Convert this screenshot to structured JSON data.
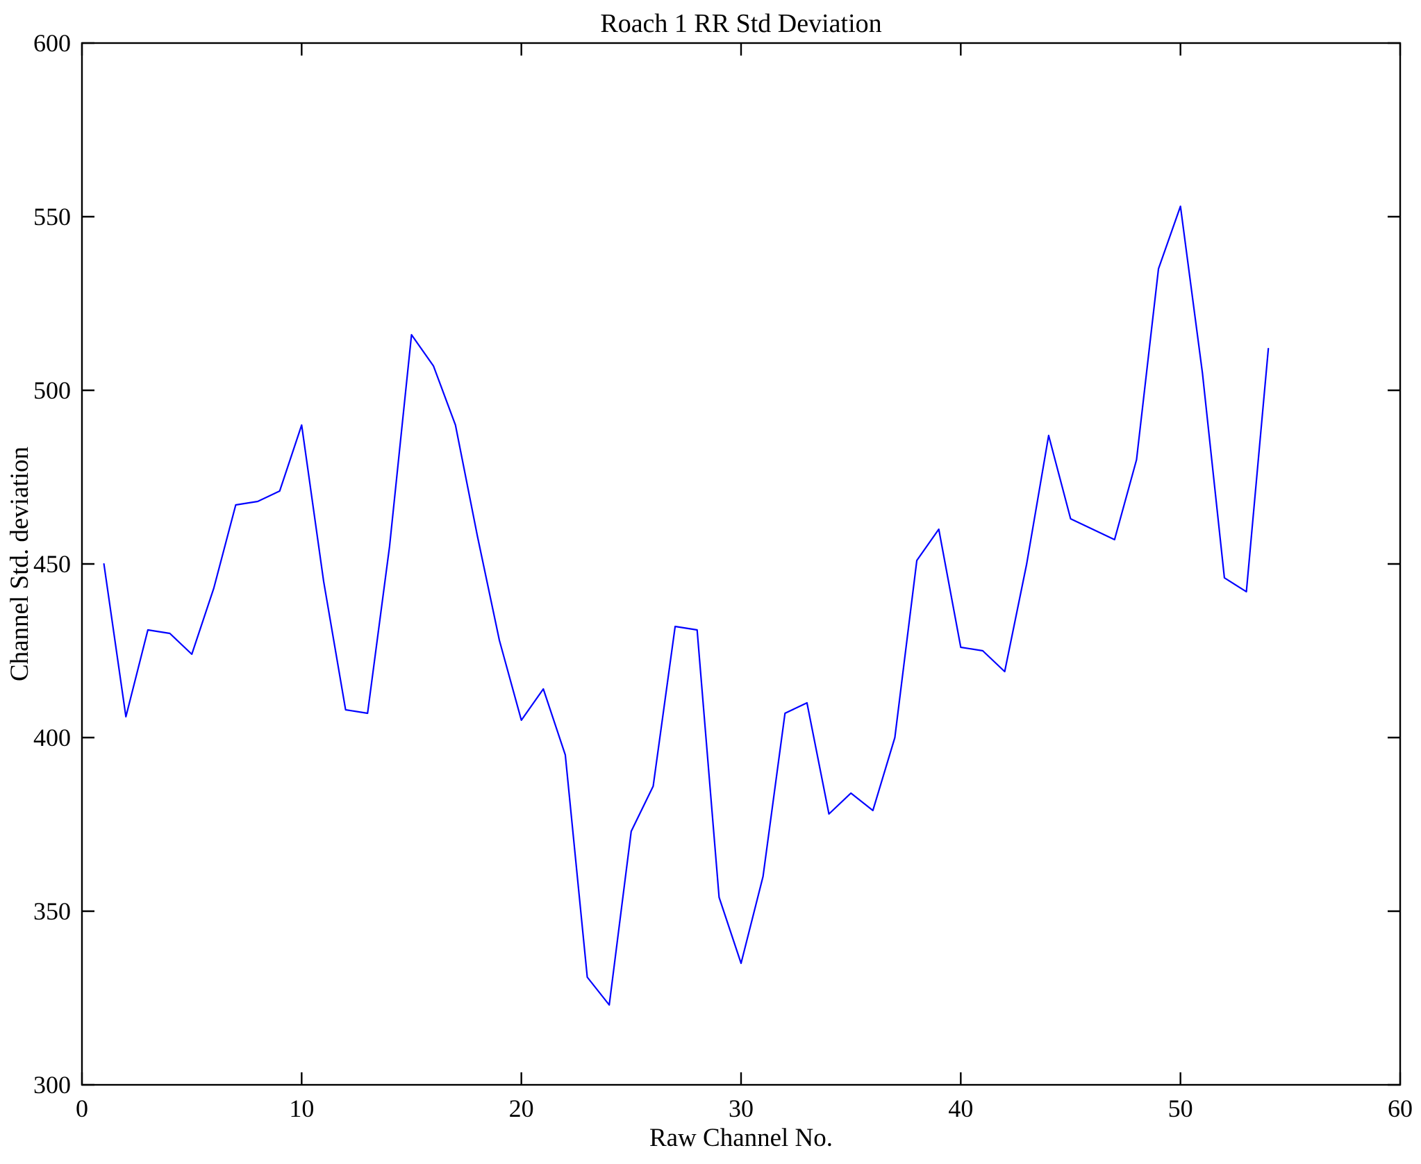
{
  "chart_data": {
    "type": "line",
    "title": "Roach 1 RR Std Deviation",
    "xlabel": "Raw Channel No.",
    "ylabel": "Channel Std. deviation",
    "xlim": [
      0,
      60
    ],
    "ylim": [
      300,
      600
    ],
    "xticks": [
      0,
      10,
      20,
      30,
      40,
      50,
      60
    ],
    "yticks": [
      300,
      350,
      400,
      450,
      500,
      550,
      600
    ],
    "grid": false,
    "legend": "none",
    "line_color": "#0000ff",
    "axis_color": "#000000",
    "background_color": "#ffffff",
    "series": [
      {
        "name": "Channel Std. deviation",
        "x": [
          1,
          2,
          3,
          4,
          5,
          6,
          7,
          8,
          9,
          10,
          11,
          12,
          13,
          14,
          15,
          16,
          17,
          18,
          19,
          20,
          21,
          22,
          23,
          24,
          25,
          26,
          27,
          28,
          29,
          30,
          31,
          32,
          33,
          34,
          35,
          36,
          37,
          38,
          39,
          40,
          41,
          42,
          43,
          44,
          45,
          46,
          47,
          48,
          49,
          50,
          51,
          52,
          53,
          54
        ],
        "y": [
          450,
          406,
          431,
          430,
          424,
          443,
          467,
          468,
          471,
          490,
          445,
          408,
          407,
          455,
          516,
          507,
          490,
          458,
          428,
          405,
          414,
          395,
          331,
          323,
          373,
          386,
          432,
          431,
          354,
          335,
          360,
          407,
          410,
          378,
          384,
          379,
          400,
          451,
          460,
          426,
          425,
          419,
          450,
          487,
          463,
          460,
          457,
          480,
          535,
          553,
          505,
          446,
          442,
          512
        ]
      }
    ]
  }
}
